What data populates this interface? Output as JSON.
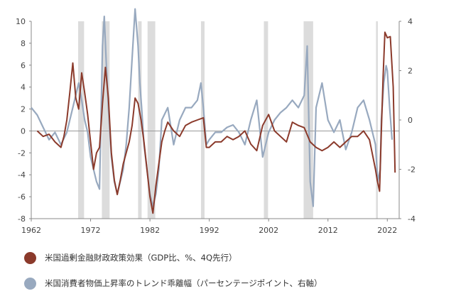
{
  "chart_data": {
    "type": "line",
    "x_ticks": [
      "1962",
      "1972",
      "1982",
      "1992",
      "2002",
      "2012",
      "2022"
    ],
    "y_left_ticks": [
      "10",
      "8",
      "6",
      "4",
      "2",
      "0",
      "-2",
      "-4",
      "-6",
      "-8"
    ],
    "y_right_ticks": [
      "4",
      "2",
      "0",
      "-2",
      "-4"
    ],
    "ylim_left": [
      -8,
      10
    ],
    "ylim_right": [
      -4,
      4
    ],
    "xlim": [
      1962,
      2024
    ],
    "recessions": [
      [
        1969.9,
        1970.9
      ],
      [
        1973.9,
        1975.2
      ],
      [
        1980.0,
        1980.6
      ],
      [
        1981.6,
        1982.9
      ],
      [
        1990.6,
        1991.2
      ],
      [
        2001.2,
        2001.9
      ],
      [
        2007.9,
        2009.5
      ],
      [
        2020.1,
        2020.4
      ]
    ],
    "series": [
      {
        "name": "米国過剰金融財政政策効果（GDP比、%、4Q先行）",
        "axis": "left",
        "color": "#8b3a2b",
        "x": [
          1963,
          1964,
          1965,
          1966,
          1967,
          1967.5,
          1968,
          1968.5,
          1969,
          1969.5,
          1970,
          1970.5,
          1971,
          1971.5,
          1972,
          1972.5,
          1973,
          1973.5,
          1974,
          1974.5,
          1975,
          1975.5,
          1976,
          1976.5,
          1977,
          1977.5,
          1978,
          1978.5,
          1979,
          1979.5,
          1980,
          1980.5,
          1981,
          1981.5,
          1982,
          1982.5,
          1983,
          1983.5,
          1984,
          1984.5,
          1985,
          1986,
          1987,
          1988,
          1989,
          1990,
          1991,
          1991.5,
          1992,
          1993,
          1994,
          1995,
          1996,
          1997,
          1998,
          1999,
          2000,
          2001,
          2002,
          2003,
          2004,
          2005,
          2006,
          2007,
          2008,
          2009,
          2010,
          2011,
          2012,
          2013,
          2014,
          2015,
          2016,
          2017,
          2018,
          2019,
          2020,
          2020.3,
          2020.7,
          2021,
          2021.3,
          2021.6,
          2022,
          2022.5,
          2023,
          2023.3
        ],
        "y": [
          0,
          -0.5,
          -0.3,
          -1.0,
          -1.5,
          -0.5,
          1.0,
          3.5,
          6.2,
          3.0,
          2.0,
          5.3,
          3.5,
          1.5,
          -1.0,
          -3.5,
          -2.0,
          -1.5,
          2.5,
          5.8,
          3.0,
          -2.0,
          -4.5,
          -5.8,
          -4.5,
          -3.0,
          -2.0,
          -1.0,
          0.5,
          3.0,
          2.5,
          1.0,
          -1.0,
          -3.5,
          -6.0,
          -7.5,
          -5.0,
          -3.0,
          -1.0,
          0.0,
          0.8,
          0.0,
          -0.5,
          0.5,
          0.8,
          1.0,
          1.2,
          -1.5,
          -1.5,
          -1.0,
          -1.0,
          -0.5,
          -0.8,
          -0.5,
          0.0,
          -1.2,
          -1.8,
          0.5,
          1.5,
          0.0,
          -0.5,
          -1.0,
          0.8,
          0.5,
          0.3,
          -1.0,
          -1.5,
          -1.8,
          -1.5,
          -1.0,
          -1.5,
          -1.0,
          -0.5,
          -0.5,
          0.0,
          -0.8,
          -3.5,
          -4.5,
          -5.5,
          0.0,
          5.0,
          9.0,
          8.5,
          8.6,
          4.0,
          -3.8
        ]
      },
      {
        "name": "米国消費者物価上昇率のトレンド乖離幅（パーセンテージポイント、右軸）",
        "axis": "right",
        "color": "#98a9bf",
        "x": [
          1962,
          1963,
          1964,
          1965,
          1966,
          1967,
          1968,
          1969,
          1970,
          1970.5,
          1971,
          1971.5,
          1972,
          1972.5,
          1973,
          1973.5,
          1974,
          1974.3,
          1974.6,
          1975,
          1975.5,
          1976,
          1976.5,
          1977,
          1977.5,
          1978,
          1978.5,
          1979,
          1979.5,
          1980,
          1980.3,
          1980.6,
          1981,
          1981.5,
          1982,
          1982.5,
          1983,
          1983.5,
          1984,
          1985,
          1986,
          1987,
          1988,
          1989,
          1990,
          1990.6,
          1991,
          1991.5,
          1992,
          1993,
          1994,
          1995,
          1996,
          1997,
          1998,
          1999,
          2000,
          2001,
          2002,
          2003,
          2004,
          2005,
          2006,
          2007,
          2008,
          2008.5,
          2009,
          2009.5,
          2010,
          2011,
          2012,
          2013,
          2014,
          2015,
          2016,
          2017,
          2018,
          2019,
          2020,
          2020.4,
          2020.8,
          2021,
          2021.4,
          2021.8,
          2022,
          2022.4,
          2022.8
        ],
        "y": [
          0.5,
          0.2,
          -0.3,
          -0.8,
          -0.5,
          -1.0,
          -0.5,
          0.5,
          1.5,
          0.8,
          0.0,
          -0.5,
          -1.5,
          -2.0,
          -2.5,
          -2.8,
          3.0,
          4.2,
          2.5,
          0.5,
          -1.5,
          -2.5,
          -3.0,
          -2.5,
          -2.0,
          -1.0,
          0.5,
          2.5,
          4.5,
          3.0,
          1.5,
          0.5,
          -1.0,
          -2.0,
          -3.0,
          -3.5,
          -3.0,
          -2.0,
          0.0,
          0.5,
          -1.0,
          0.0,
          0.5,
          0.5,
          0.8,
          1.5,
          0.5,
          -1.0,
          -0.8,
          -0.5,
          -0.5,
          -0.3,
          -0.2,
          -0.5,
          -1.0,
          0.0,
          0.8,
          -1.5,
          -0.5,
          0.0,
          0.3,
          0.5,
          0.8,
          0.5,
          1.0,
          3.0,
          -2.5,
          -3.5,
          0.5,
          1.5,
          0.0,
          -0.5,
          0.0,
          -1.2,
          -0.5,
          0.5,
          0.8,
          0.0,
          -1.0,
          -2.5,
          -2.0,
          0.0,
          1.5,
          2.2,
          2.0,
          0.5,
          -0.8
        ]
      }
    ]
  }
}
